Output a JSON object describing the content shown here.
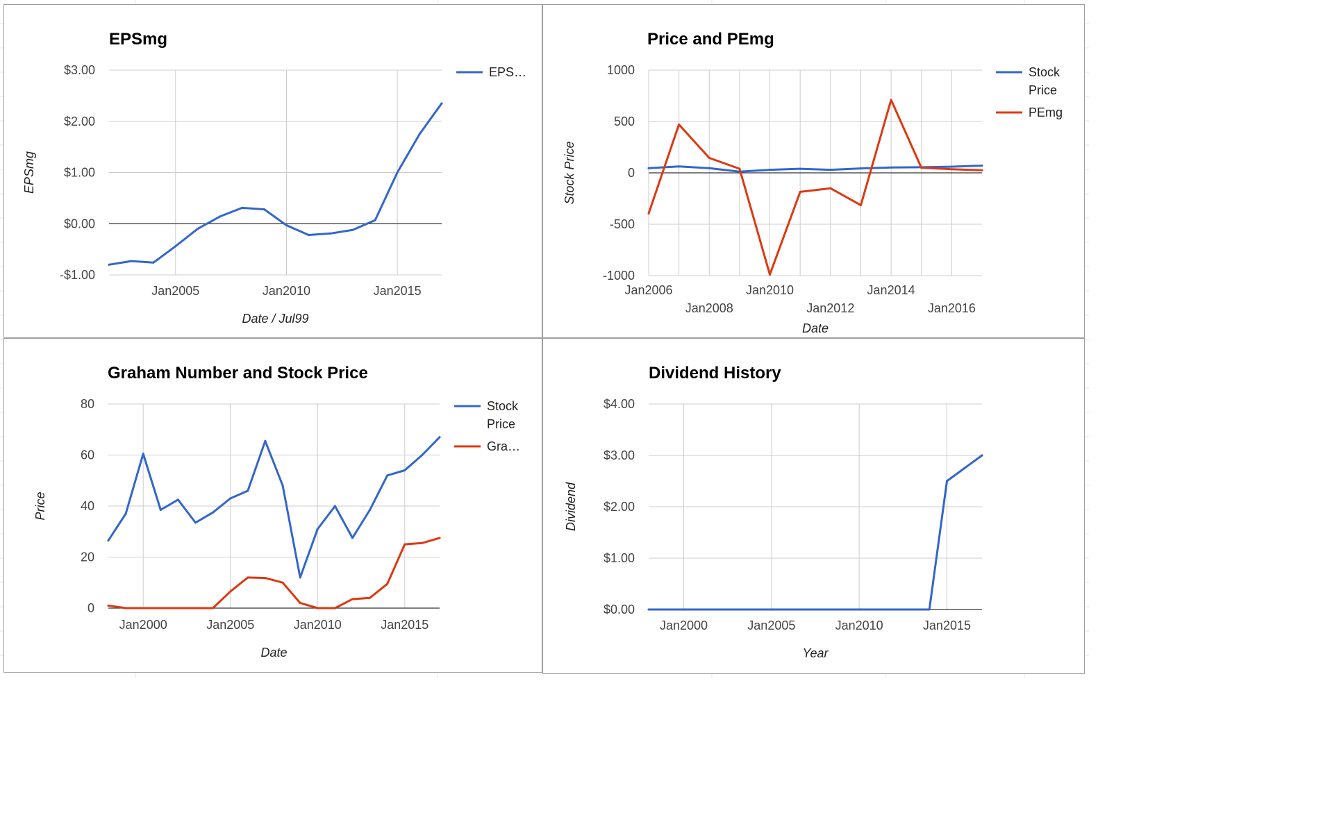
{
  "colors": {
    "blue": "#3366cc",
    "red": "#dc3912"
  },
  "chart_data": [
    {
      "id": "c1",
      "type": "line",
      "title": "EPSmg",
      "xlabel": "Date / Jul99",
      "ylabel": "EPSmg",
      "xlim": [
        2002,
        2017
      ],
      "ylim": [
        -1,
        3
      ],
      "yticks": [
        -1,
        0,
        1,
        2,
        3
      ],
      "ytick_labels": [
        "-$1.00",
        "$0.00",
        "$1.00",
        "$2.00",
        "$3.00"
      ],
      "xticks": [
        2005,
        2010,
        2015
      ],
      "xtick_labels": [
        "Jan2005",
        "Jan2010",
        "Jan2015"
      ],
      "xgrid": [
        2005,
        2010,
        2015
      ],
      "xlabel_rows": [
        0,
        0,
        0
      ],
      "grid": true,
      "legend_position": "right",
      "series": [
        {
          "name": "EPS…",
          "color": "#3366cc",
          "x": [
            2002,
            2003,
            2004,
            2005,
            2006,
            2007,
            2008,
            2009,
            2010,
            2011,
            2012,
            2013,
            2014,
            2015,
            2016,
            2017
          ],
          "y": [
            -0.8,
            -0.73,
            -0.76,
            -0.44,
            -0.1,
            0.14,
            0.31,
            0.28,
            -0.03,
            -0.22,
            -0.19,
            -0.12,
            0.07,
            1.0,
            1.75,
            2.35
          ]
        }
      ]
    },
    {
      "id": "c2",
      "type": "line",
      "title": "Price and PEmg",
      "xlabel": "Date",
      "ylabel": "Stock Price",
      "xlim": [
        2006,
        2017
      ],
      "ylim": [
        -1000,
        1000
      ],
      "yticks": [
        -1000,
        -500,
        0,
        500,
        1000
      ],
      "ytick_labels": [
        "-1000",
        "-500",
        "0",
        "500",
        "1000"
      ],
      "xticks": [
        2006,
        2008,
        2010,
        2012,
        2014,
        2016
      ],
      "xtick_labels": [
        "Jan2006",
        "Jan2008",
        "Jan2010",
        "Jan2012",
        "Jan2014",
        "Jan2016"
      ],
      "xgrid": [
        2006,
        2007,
        2008,
        2009,
        2010,
        2011,
        2012,
        2013,
        2014,
        2015,
        2016
      ],
      "xlabel_rows": [
        0,
        1,
        0,
        1,
        0,
        1
      ],
      "grid": true,
      "legend_position": "right",
      "series": [
        {
          "name": "Stock Price",
          "color": "#3366cc",
          "x": [
            2006,
            2007,
            2008,
            2009,
            2010,
            2011,
            2012,
            2013,
            2014,
            2015,
            2016,
            2017
          ],
          "y": [
            45,
            62,
            45,
            12,
            30,
            40,
            30,
            43,
            52,
            55,
            60,
            70
          ]
        },
        {
          "name": "PEmg",
          "color": "#dc3912",
          "x": [
            2006,
            2007,
            2008,
            2009,
            2010,
            2011,
            2012,
            2013,
            2014,
            2015,
            2016,
            2017
          ],
          "y": [
            -395,
            470,
            145,
            40,
            -990,
            -185,
            -150,
            -315,
            710,
            50,
            35,
            25
          ]
        }
      ]
    },
    {
      "id": "c3",
      "type": "line",
      "title": "Graham Number and Stock Price",
      "xlabel": "Date",
      "ylabel": "Price",
      "xlim": [
        1998,
        2017
      ],
      "ylim": [
        0,
        80
      ],
      "yticks": [
        0,
        20,
        40,
        60,
        80
      ],
      "ytick_labels": [
        "0",
        "20",
        "40",
        "60",
        "80"
      ],
      "xticks": [
        2000,
        2005,
        2010,
        2015
      ],
      "xtick_labels": [
        "Jan2000",
        "Jan2005",
        "Jan2010",
        "Jan2015"
      ],
      "xgrid": [
        2000,
        2005,
        2010,
        2015
      ],
      "xlabel_rows": [
        0,
        0,
        0,
        0
      ],
      "grid": true,
      "legend_position": "right",
      "series": [
        {
          "name": "Stock Price",
          "color": "#3366cc",
          "x": [
            1998,
            1999,
            2000,
            2001,
            2002,
            2003,
            2004,
            2005,
            2006,
            2007,
            2008,
            2009,
            2010,
            2011,
            2012,
            2013,
            2014,
            2015,
            2016,
            2017
          ],
          "y": [
            26.5,
            37,
            60.5,
            38.5,
            42.5,
            33.5,
            37.5,
            43,
            46,
            65.5,
            48,
            12,
            31,
            40,
            27.5,
            38.5,
            52,
            54,
            60,
            67
          ]
        },
        {
          "name": "Gra…",
          "color": "#dc3912",
          "x": [
            1998,
            1999,
            2000,
            2001,
            2002,
            2003,
            2004,
            2005,
            2006,
            2007,
            2008,
            2009,
            2010,
            2011,
            2012,
            2013,
            2014,
            2015,
            2016,
            2017
          ],
          "y": [
            1,
            0,
            0,
            0,
            0,
            0,
            0,
            6.5,
            12,
            11.8,
            10,
            2,
            0,
            0,
            3.5,
            4,
            9.5,
            25,
            25.5,
            27.5
          ]
        }
      ]
    },
    {
      "id": "c4",
      "type": "line",
      "title": "Dividend History",
      "xlabel": "Year",
      "ylabel": "Dividend",
      "xlim": [
        1998,
        2017
      ],
      "ylim": [
        0,
        4
      ],
      "yticks": [
        0,
        1,
        2,
        3,
        4
      ],
      "ytick_labels": [
        "$0.00",
        "$1.00",
        "$2.00",
        "$3.00",
        "$4.00"
      ],
      "xticks": [
        2000,
        2005,
        2010,
        2015
      ],
      "xtick_labels": [
        "Jan2000",
        "Jan2005",
        "Jan2010",
        "Jan2015"
      ],
      "xgrid": [
        2000,
        2005,
        2010,
        2015
      ],
      "xlabel_rows": [
        0,
        0,
        0,
        0
      ],
      "grid": true,
      "legend_position": "none",
      "series": [
        {
          "name": "",
          "color": "#3366cc",
          "x": [
            1998,
            1999,
            2000,
            2001,
            2002,
            2003,
            2004,
            2005,
            2006,
            2007,
            2008,
            2009,
            2010,
            2011,
            2012,
            2013,
            2014,
            2015,
            2016,
            2017
          ],
          "y": [
            0,
            0,
            0,
            0,
            0,
            0,
            0,
            0,
            0,
            0,
            0,
            0,
            0,
            0,
            0,
            0,
            0,
            2.5,
            2.75,
            3.0
          ]
        }
      ]
    }
  ]
}
